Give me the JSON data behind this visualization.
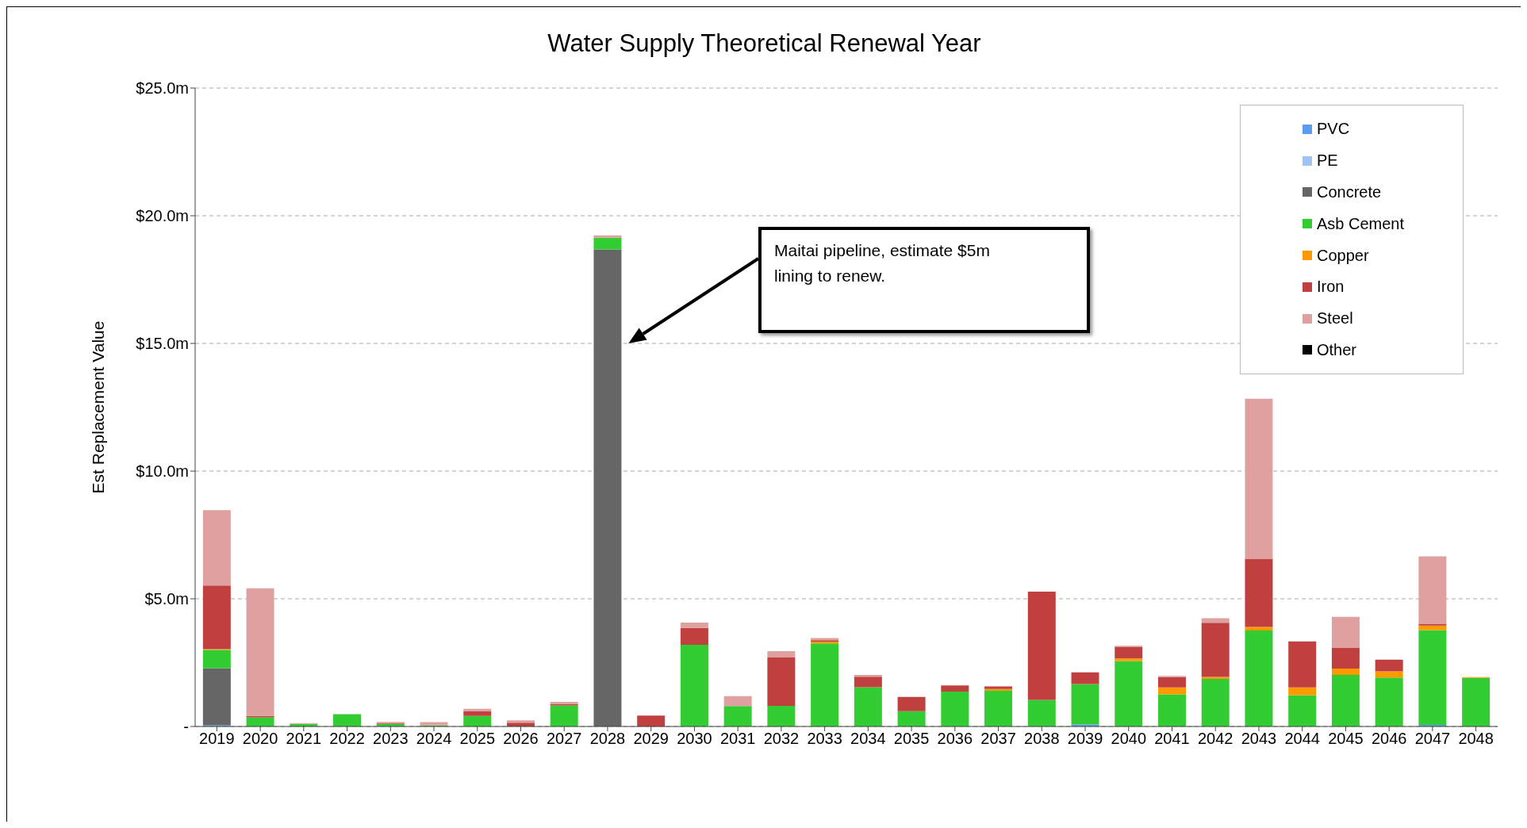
{
  "chart_data": {
    "type": "bar",
    "title": "Water Supply Theoretical Renewal Year",
    "ylabel": "Est Replacement Value",
    "stacked": true,
    "grid": "y",
    "legend": "top right",
    "categories": [
      "2019",
      "2020",
      "2021",
      "2022",
      "2023",
      "2024",
      "2025",
      "2026",
      "2027",
      "2028",
      "2029",
      "2030",
      "2031",
      "2032",
      "2033",
      "2034",
      "2035",
      "2036",
      "2037",
      "2038",
      "2039",
      "2040",
      "2041",
      "2042",
      "2043",
      "2044",
      "2045",
      "2046",
      "2047",
      "2048"
    ],
    "ylim": [
      0,
      25
    ],
    "yticks": [
      {
        "value": 0,
        "label": "-"
      },
      {
        "value": 5,
        "label": "$5.0m"
      },
      {
        "value": 10,
        "label": "$10.0m"
      },
      {
        "value": 15,
        "label": "$15.0m"
      },
      {
        "value": 20,
        "label": "$20.0m"
      },
      {
        "value": 25,
        "label": "$25.0m"
      }
    ],
    "series": [
      {
        "name": "PVC",
        "color": "#5b9bf0",
        "values": [
          0.05,
          null,
          null,
          null,
          null,
          null,
          null,
          null,
          null,
          null,
          null,
          null,
          null,
          null,
          null,
          null,
          null,
          null,
          null,
          null,
          0.08,
          null,
          null,
          null,
          null,
          null,
          null,
          null,
          0.06,
          null
        ]
      },
      {
        "name": "PE",
        "color": "#9ec3f5",
        "values": [
          null,
          null,
          null,
          null,
          null,
          null,
          null,
          null,
          null,
          null,
          null,
          null,
          null,
          null,
          null,
          null,
          null,
          null,
          null,
          null,
          null,
          null,
          null,
          null,
          null,
          null,
          null,
          null,
          null,
          null
        ]
      },
      {
        "name": "Concrete",
        "color": "#666666",
        "values": [
          2.23,
          null,
          null,
          null,
          null,
          null,
          null,
          null,
          null,
          18.68,
          null,
          null,
          null,
          null,
          null,
          null,
          null,
          null,
          null,
          null,
          null,
          null,
          null,
          null,
          null,
          null,
          null,
          null,
          null,
          null
        ]
      },
      {
        "name": "Asb Cement",
        "color": "#33cc33",
        "values": [
          0.72,
          0.36,
          0.1,
          0.48,
          0.1,
          0.05,
          0.41,
          null,
          0.82,
          0.46,
          null,
          3.2,
          0.8,
          0.81,
          3.25,
          1.54,
          0.6,
          1.37,
          1.4,
          1.04,
          1.58,
          2.56,
          1.26,
          1.86,
          3.76,
          1.23,
          2.02,
          1.92,
          3.71,
          1.9
        ]
      },
      {
        "name": "Copper",
        "color": "#ff9900",
        "values": [
          0.03,
          null,
          null,
          null,
          null,
          null,
          null,
          null,
          null,
          null,
          null,
          null,
          null,
          null,
          0.07,
          null,
          null,
          null,
          0.07,
          null,
          null,
          0.1,
          0.27,
          0.08,
          0.14,
          0.3,
          0.25,
          0.24,
          0.18,
          0.03
        ]
      },
      {
        "name": "Iron",
        "color": "#c04040",
        "values": [
          2.49,
          0.05,
          null,
          null,
          0.03,
          null,
          0.18,
          0.15,
          0.06,
          null,
          0.43,
          0.66,
          null,
          1.89,
          0.06,
          0.41,
          0.56,
          0.24,
          0.1,
          4.24,
          0.46,
          0.46,
          0.4,
          2.12,
          2.67,
          1.8,
          0.82,
          0.46,
          0.07,
          null
        ]
      },
      {
        "name": "Steel",
        "color": "#dfa0a0",
        "values": [
          2.95,
          5.0,
          0.03,
          null,
          0.05,
          0.12,
          0.1,
          0.09,
          0.08,
          0.09,
          null,
          0.21,
          0.39,
          0.25,
          0.08,
          0.07,
          null,
          null,
          null,
          null,
          null,
          0.04,
          0.05,
          0.18,
          6.26,
          null,
          1.2,
          null,
          2.64,
          null
        ]
      },
      {
        "name": "Other",
        "color": "#000000",
        "values": [
          null,
          null,
          null,
          null,
          null,
          null,
          null,
          null,
          null,
          null,
          null,
          null,
          null,
          null,
          null,
          null,
          null,
          null,
          null,
          null,
          null,
          null,
          null,
          null,
          null,
          null,
          null,
          null,
          null,
          null
        ]
      }
    ],
    "annotations": [
      "Maitai pipeline, estimate $5m lining to renew."
    ]
  }
}
